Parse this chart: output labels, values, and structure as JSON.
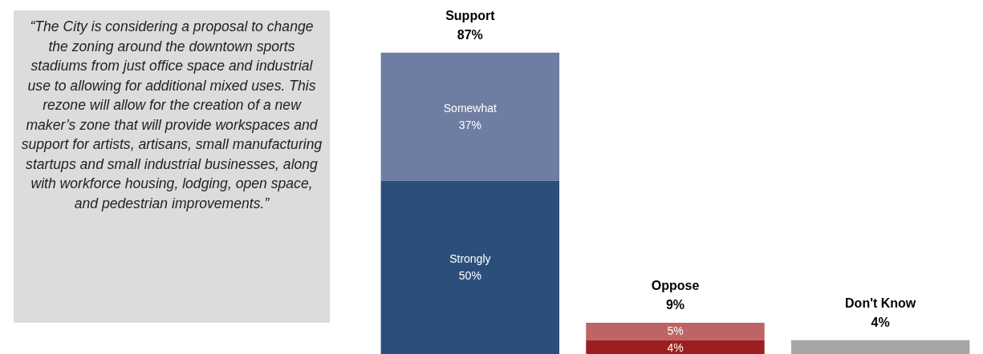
{
  "chart_data": {
    "type": "bar",
    "stacked": true,
    "categories": [
      "Support",
      "Oppose",
      "Don't Know"
    ],
    "totals": [
      "87%",
      "9%",
      "4%"
    ],
    "series": [
      {
        "name": "Strongly",
        "colors": [
          "#2b4f7a",
          "#9c1f1f",
          "#a6a6a6"
        ],
        "values": [
          50,
          4,
          4
        ],
        "value_labels": [
          "50%",
          "4%",
          null
        ]
      },
      {
        "name": "Somewhat",
        "colors": [
          "#6e7da1",
          "#bf6464",
          "#a6a6a6"
        ],
        "values": [
          37,
          5,
          null
        ],
        "value_labels": [
          "37%",
          "5%",
          null
        ]
      }
    ],
    "annotations": [
      "“The City is considering a proposal to change the zoning around the downtown sports stadiums from just office space and industrial use to allowing for additional mixed uses. This rezone will allow for the creation of a new maker’s zone that will provide workspaces and support for artists, artisans, small manufacturing startups and small industrial businesses, along with workforce housing, lodging, open space, and pedestrian improvements.”"
    ]
  }
}
